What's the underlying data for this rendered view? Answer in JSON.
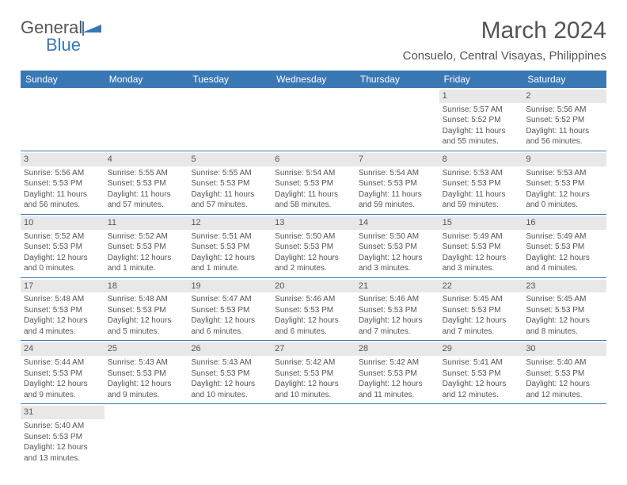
{
  "logo": {
    "text1": "General",
    "text2": "Blue"
  },
  "title": "March 2024",
  "location": "Consuelo, Central Visayas, Philippines",
  "day_names": [
    "Sunday",
    "Monday",
    "Tuesday",
    "Wednesday",
    "Thursday",
    "Friday",
    "Saturday"
  ],
  "colors": {
    "header_bg": "#3a78b5",
    "header_text": "#ffffff",
    "daynum_bg": "#e8e8e8",
    "border": "#3a78b5",
    "text": "#555555"
  },
  "weeks": [
    [
      null,
      null,
      null,
      null,
      null,
      {
        "d": "1",
        "sr": "5:57 AM",
        "ss": "5:52 PM",
        "dl": "11 hours and 55 minutes."
      },
      {
        "d": "2",
        "sr": "5:56 AM",
        "ss": "5:52 PM",
        "dl": "11 hours and 56 minutes."
      }
    ],
    [
      {
        "d": "3",
        "sr": "5:56 AM",
        "ss": "5:53 PM",
        "dl": "11 hours and 56 minutes."
      },
      {
        "d": "4",
        "sr": "5:55 AM",
        "ss": "5:53 PM",
        "dl": "11 hours and 57 minutes."
      },
      {
        "d": "5",
        "sr": "5:55 AM",
        "ss": "5:53 PM",
        "dl": "11 hours and 57 minutes."
      },
      {
        "d": "6",
        "sr": "5:54 AM",
        "ss": "5:53 PM",
        "dl": "11 hours and 58 minutes."
      },
      {
        "d": "7",
        "sr": "5:54 AM",
        "ss": "5:53 PM",
        "dl": "11 hours and 59 minutes."
      },
      {
        "d": "8",
        "sr": "5:53 AM",
        "ss": "5:53 PM",
        "dl": "11 hours and 59 minutes."
      },
      {
        "d": "9",
        "sr": "5:53 AM",
        "ss": "5:53 PM",
        "dl": "12 hours and 0 minutes."
      }
    ],
    [
      {
        "d": "10",
        "sr": "5:52 AM",
        "ss": "5:53 PM",
        "dl": "12 hours and 0 minutes."
      },
      {
        "d": "11",
        "sr": "5:52 AM",
        "ss": "5:53 PM",
        "dl": "12 hours and 1 minute."
      },
      {
        "d": "12",
        "sr": "5:51 AM",
        "ss": "5:53 PM",
        "dl": "12 hours and 1 minute."
      },
      {
        "d": "13",
        "sr": "5:50 AM",
        "ss": "5:53 PM",
        "dl": "12 hours and 2 minutes."
      },
      {
        "d": "14",
        "sr": "5:50 AM",
        "ss": "5:53 PM",
        "dl": "12 hours and 3 minutes."
      },
      {
        "d": "15",
        "sr": "5:49 AM",
        "ss": "5:53 PM",
        "dl": "12 hours and 3 minutes."
      },
      {
        "d": "16",
        "sr": "5:49 AM",
        "ss": "5:53 PM",
        "dl": "12 hours and 4 minutes."
      }
    ],
    [
      {
        "d": "17",
        "sr": "5:48 AM",
        "ss": "5:53 PM",
        "dl": "12 hours and 4 minutes."
      },
      {
        "d": "18",
        "sr": "5:48 AM",
        "ss": "5:53 PM",
        "dl": "12 hours and 5 minutes."
      },
      {
        "d": "19",
        "sr": "5:47 AM",
        "ss": "5:53 PM",
        "dl": "12 hours and 6 minutes."
      },
      {
        "d": "20",
        "sr": "5:46 AM",
        "ss": "5:53 PM",
        "dl": "12 hours and 6 minutes."
      },
      {
        "d": "21",
        "sr": "5:46 AM",
        "ss": "5:53 PM",
        "dl": "12 hours and 7 minutes."
      },
      {
        "d": "22",
        "sr": "5:45 AM",
        "ss": "5:53 PM",
        "dl": "12 hours and 7 minutes."
      },
      {
        "d": "23",
        "sr": "5:45 AM",
        "ss": "5:53 PM",
        "dl": "12 hours and 8 minutes."
      }
    ],
    [
      {
        "d": "24",
        "sr": "5:44 AM",
        "ss": "5:53 PM",
        "dl": "12 hours and 9 minutes."
      },
      {
        "d": "25",
        "sr": "5:43 AM",
        "ss": "5:53 PM",
        "dl": "12 hours and 9 minutes."
      },
      {
        "d": "26",
        "sr": "5:43 AM",
        "ss": "5:53 PM",
        "dl": "12 hours and 10 minutes."
      },
      {
        "d": "27",
        "sr": "5:42 AM",
        "ss": "5:53 PM",
        "dl": "12 hours and 10 minutes."
      },
      {
        "d": "28",
        "sr": "5:42 AM",
        "ss": "5:53 PM",
        "dl": "12 hours and 11 minutes."
      },
      {
        "d": "29",
        "sr": "5:41 AM",
        "ss": "5:53 PM",
        "dl": "12 hours and 12 minutes."
      },
      {
        "d": "30",
        "sr": "5:40 AM",
        "ss": "5:53 PM",
        "dl": "12 hours and 12 minutes."
      }
    ],
    [
      {
        "d": "31",
        "sr": "5:40 AM",
        "ss": "5:53 PM",
        "dl": "12 hours and 13 minutes."
      },
      null,
      null,
      null,
      null,
      null,
      null
    ]
  ],
  "labels": {
    "sunrise": "Sunrise:",
    "sunset": "Sunset:",
    "daylight": "Daylight:"
  }
}
